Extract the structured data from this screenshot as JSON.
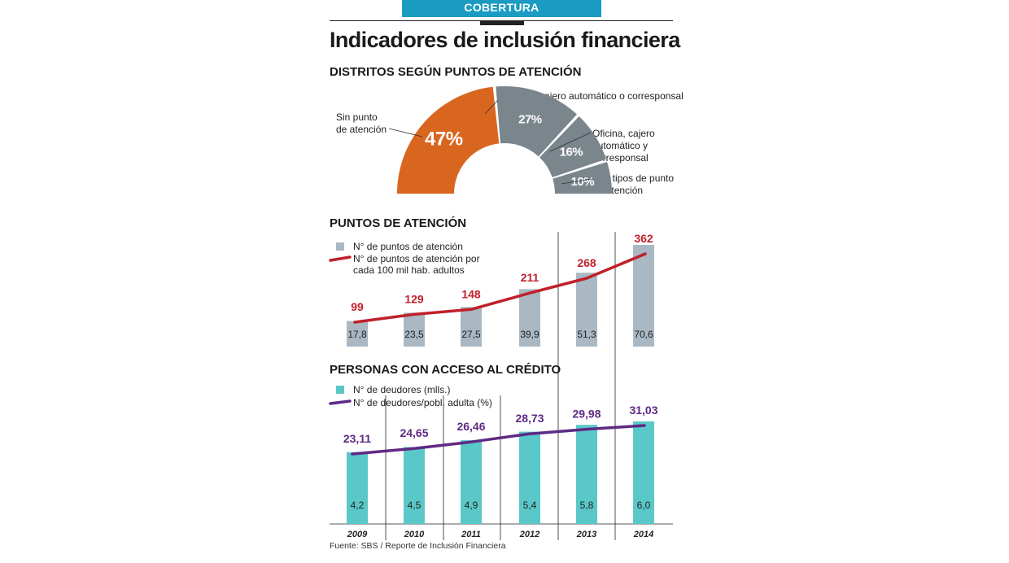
{
  "header": {
    "banner": "COBERTURA",
    "title": "Indicadores de inclusión financiera"
  },
  "sections": {
    "districts": "DISTRITOS SEGÚN PUNTOS DE ATENCIÓN",
    "points": "PUNTOS DE ATENCIÓN",
    "credit": "PERSONAS CON ACCESO AL CRÉDITO"
  },
  "donut_labels": {
    "sin_punto": "Sin punto\nde atención",
    "oficina_cajero_corresponsal": "Oficina, cajero automático o corresponsal",
    "oficina_cajero_y_corresponsal": "Oficina, cajero\nautomático y\ncorresponsal",
    "dos_tipos": "Dos tipos de punto\nde atención"
  },
  "legends": {
    "points_bar": "N° de puntos de atención",
    "points_line": "N° de puntos de atención por\ncada 100 mil hab. adultos",
    "credit_bar": "N° de deudores (mlls.)",
    "credit_line": "N° de deudores/pobl. adulta (%)"
  },
  "source": "Fuente: SBS / Reporte de Inclusión Financiera",
  "colors": {
    "orange": "#d9661f",
    "gray": "#7a858c",
    "gray_bar": "#a9b8c3",
    "red": "#c0202a",
    "teal": "#5ac8c8",
    "purple": "#5e2a84",
    "banner": "#1a9bc2"
  },
  "chart_data": [
    {
      "type": "pie",
      "title": "DISTRITOS SEGÚN PUNTOS DE ATENCIÓN",
      "categories": [
        "Sin punto de atención",
        "Oficina, cajero automático o corresponsal",
        "Oficina, cajero automático y corresponsal",
        "Dos tipos de punto de atención"
      ],
      "values": [
        47,
        27,
        16,
        10
      ],
      "labels": [
        "47%",
        "27%",
        "16%",
        "10%"
      ]
    },
    {
      "type": "bar",
      "title": "PUNTOS DE ATENCIÓN",
      "categories": [
        "2009",
        "2010",
        "2011",
        "2012",
        "2013",
        "2014"
      ],
      "series": [
        {
          "name": "N° de puntos de atención",
          "kind": "bar",
          "values": [
            17.8,
            23.5,
            27.5,
            39.9,
            51.3,
            70.6
          ],
          "labels": [
            "17,8",
            "23,5",
            "27,5",
            "39,9",
            "51,3",
            "70,6"
          ]
        },
        {
          "name": "N° de puntos de atención por cada 100 mil hab. adultos",
          "kind": "line",
          "values": [
            99,
            129,
            148,
            211,
            268,
            362
          ],
          "labels": [
            "99",
            "129",
            "148",
            "211",
            "268",
            "362"
          ]
        }
      ]
    },
    {
      "type": "bar",
      "title": "PERSONAS CON ACCESO AL CRÉDITO",
      "categories": [
        "2009",
        "2010",
        "2011",
        "2012",
        "2013",
        "2014"
      ],
      "series": [
        {
          "name": "N° de deudores (mlls.)",
          "kind": "bar",
          "values": [
            4.2,
            4.5,
            4.9,
            5.4,
            5.8,
            6.0
          ],
          "labels": [
            "4,2",
            "4,5",
            "4,9",
            "5,4",
            "5,8",
            "6,0"
          ]
        },
        {
          "name": "N° de deudores/pobl. adulta (%)",
          "kind": "line",
          "values": [
            23.11,
            24.65,
            26.46,
            28.73,
            29.98,
            31.03
          ],
          "labels": [
            "23,11",
            "24,65",
            "26,46",
            "28,73",
            "29,98",
            "31,03"
          ]
        }
      ]
    }
  ]
}
